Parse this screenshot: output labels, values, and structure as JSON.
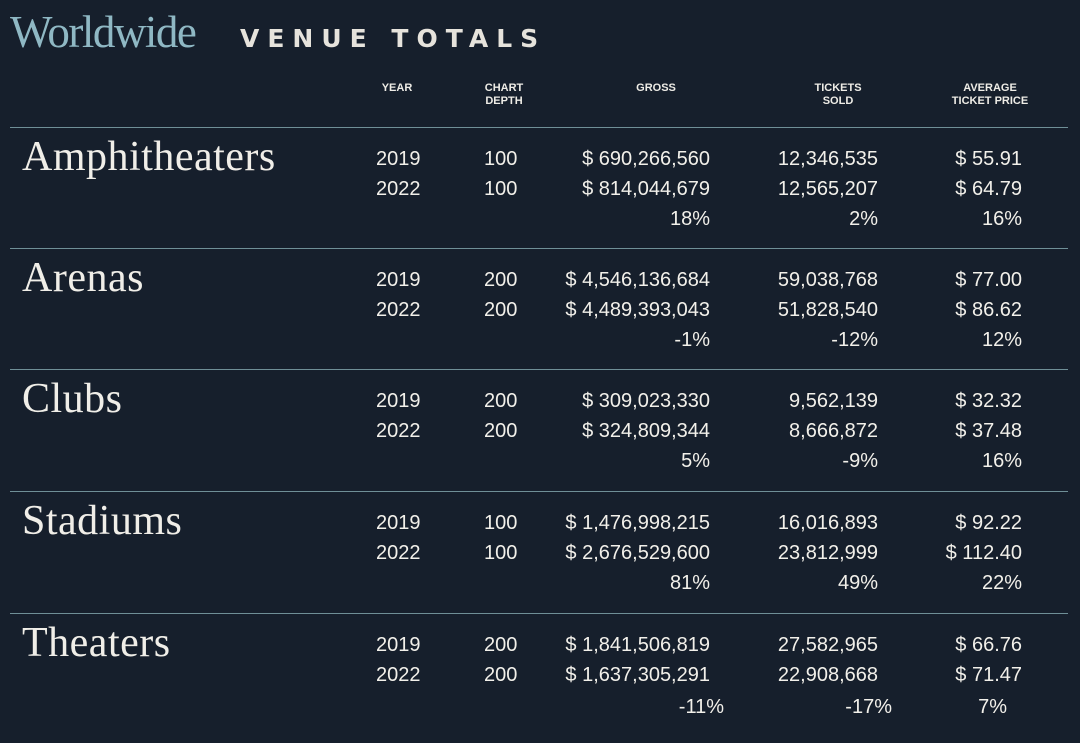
{
  "header": {
    "title_script": "Worldwide",
    "title_caps": "VENUE TOTALS"
  },
  "columns": {
    "year": "YEAR",
    "chart_depth": "CHART\nDEPTH",
    "gross": "GROSS",
    "tickets_sold": "TICKETS\nSOLD",
    "avg_ticket_price": "AVERAGE\nTICKET PRICE"
  },
  "venues": [
    {
      "name": "Amphitheaters",
      "rows": [
        {
          "year": "2019",
          "depth": "100",
          "gross": "$ 690,266,560",
          "tickets": "12,346,535",
          "atp": "$ 55.91"
        },
        {
          "year": "2022",
          "depth": "100",
          "gross": "$ 814,044,679",
          "tickets": "12,565,207",
          "atp": "$ 64.79"
        }
      ],
      "change": {
        "gross": "18%",
        "tickets": "2%",
        "atp": "16%"
      }
    },
    {
      "name": "Arenas",
      "rows": [
        {
          "year": "2019",
          "depth": "200",
          "gross": "$ 4,546,136,684",
          "tickets": "59,038,768",
          "atp": "$ 77.00"
        },
        {
          "year": "2022",
          "depth": "200",
          "gross": "$ 4,489,393,043",
          "tickets": "51,828,540",
          "atp": "$ 86.62"
        }
      ],
      "change": {
        "gross": "-1%",
        "tickets": "-12%",
        "atp": "12%"
      }
    },
    {
      "name": "Clubs",
      "rows": [
        {
          "year": "2019",
          "depth": "200",
          "gross": "$ 309,023,330",
          "tickets": "9,562,139",
          "atp": "$ 32.32"
        },
        {
          "year": "2022",
          "depth": "200",
          "gross": "$ 324,809,344",
          "tickets": "8,666,872",
          "atp": "$ 37.48"
        }
      ],
      "change": {
        "gross": "5%",
        "tickets": "-9%",
        "atp": "16%"
      }
    },
    {
      "name": "Stadiums",
      "rows": [
        {
          "year": "2019",
          "depth": "100",
          "gross": "$ 1,476,998,215",
          "tickets": "16,016,893",
          "atp": "$ 92.22"
        },
        {
          "year": "2022",
          "depth": "100",
          "gross": "$ 2,676,529,600",
          "tickets": "23,812,999",
          "atp": "$ 112.40"
        }
      ],
      "change": {
        "gross": "81%",
        "tickets": "49%",
        "atp": "22%"
      }
    },
    {
      "name": "Theaters",
      "rows": [
        {
          "year": "2019",
          "depth": "200",
          "gross": "$ 1,841,506,819",
          "tickets": "27,582,965",
          "atp": "$ 66.76"
        },
        {
          "year": "2022",
          "depth": "200",
          "gross": "$ 1,637,305,291",
          "tickets": "22,908,668",
          "atp": "$ 71.47"
        }
      ],
      "change": {
        "gross": "-11%",
        "tickets": "-17%",
        "atp": "7%"
      }
    }
  ]
}
